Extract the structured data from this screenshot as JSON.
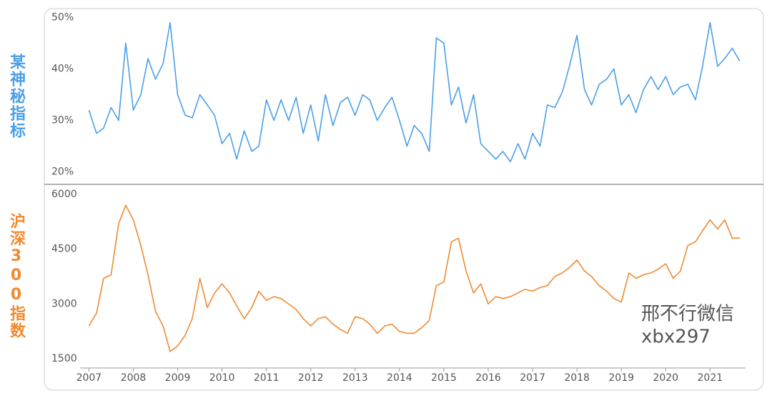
{
  "chart_data": [
    {
      "type": "line",
      "y_label": "某神秘指标",
      "color": "#4a9fe8",
      "x": [
        2007,
        2007.17,
        2007.33,
        2007.5,
        2007.67,
        2007.83,
        2008,
        2008.17,
        2008.33,
        2008.5,
        2008.67,
        2008.83,
        2009,
        2009.17,
        2009.33,
        2009.5,
        2009.67,
        2009.83,
        2010,
        2010.17,
        2010.33,
        2010.5,
        2010.67,
        2010.83,
        2011,
        2011.17,
        2011.33,
        2011.5,
        2011.67,
        2011.83,
        2012,
        2012.17,
        2012.33,
        2012.5,
        2012.67,
        2012.83,
        2013,
        2013.17,
        2013.33,
        2013.5,
        2013.67,
        2013.83,
        2014,
        2014.17,
        2014.33,
        2014.5,
        2014.67,
        2014.83,
        2015,
        2015.17,
        2015.33,
        2015.5,
        2015.67,
        2015.83,
        2016,
        2016.17,
        2016.33,
        2016.5,
        2016.67,
        2016.83,
        2017,
        2017.17,
        2017.33,
        2017.5,
        2017.67,
        2017.83,
        2018,
        2018.17,
        2018.33,
        2018.5,
        2018.67,
        2018.83,
        2019,
        2019.17,
        2019.33,
        2019.5,
        2019.67,
        2019.83,
        2020,
        2020.17,
        2020.33,
        2020.5,
        2020.67,
        2020.83,
        2021,
        2021.17,
        2021.33,
        2021.5,
        2021.67
      ],
      "values": [
        32,
        27.5,
        28.5,
        32.5,
        30,
        45,
        32,
        35,
        42,
        38,
        41,
        49,
        35,
        31,
        30.5,
        35,
        33,
        31,
        25.5,
        27.5,
        22.5,
        28,
        24,
        25,
        34,
        30,
        34,
        30,
        34.5,
        27.5,
        33,
        26,
        35,
        29,
        33.5,
        34.5,
        31,
        35,
        34,
        30,
        32.5,
        34.5,
        30,
        25,
        29,
        27.5,
        24,
        46,
        45,
        33,
        36.5,
        29.5,
        35,
        25.5,
        24,
        22.5,
        24,
        22,
        25.5,
        22.5,
        27.5,
        25,
        33,
        32.5,
        35.5,
        40.5,
        46.5,
        36,
        33,
        37,
        38,
        40,
        33,
        35,
        31.5,
        36,
        38.5,
        36,
        38.5,
        35,
        36.5,
        37,
        34,
        40.5,
        49,
        40.5,
        42,
        44,
        41.5
      ],
      "xlim": [
        2006.8,
        2021.8
      ],
      "ylim": [
        17.6,
        51.7
      ],
      "yticks": [
        {
          "value": 50,
          "label": "50%"
        },
        {
          "value": 40,
          "label": "40%"
        },
        {
          "value": 30,
          "label": "30%"
        },
        {
          "value": 20,
          "label": "20%"
        }
      ]
    },
    {
      "type": "line",
      "y_label": "沪深300指数",
      "color": "#f08a30",
      "x": [
        2007,
        2007.17,
        2007.33,
        2007.5,
        2007.67,
        2007.83,
        2008,
        2008.17,
        2008.33,
        2008.5,
        2008.67,
        2008.83,
        2009,
        2009.17,
        2009.33,
        2009.5,
        2009.67,
        2009.83,
        2010,
        2010.17,
        2010.33,
        2010.5,
        2010.67,
        2010.83,
        2011,
        2011.17,
        2011.33,
        2011.5,
        2011.67,
        2011.83,
        2012,
        2012.17,
        2012.33,
        2012.5,
        2012.67,
        2012.83,
        2013,
        2013.17,
        2013.33,
        2013.5,
        2013.67,
        2013.83,
        2014,
        2014.17,
        2014.33,
        2014.5,
        2014.67,
        2014.83,
        2015,
        2015.17,
        2015.33,
        2015.5,
        2015.67,
        2015.83,
        2016,
        2016.17,
        2016.33,
        2016.5,
        2016.67,
        2016.83,
        2017,
        2017.17,
        2017.33,
        2017.5,
        2017.67,
        2017.83,
        2018,
        2018.17,
        2018.33,
        2018.5,
        2018.67,
        2018.83,
        2019,
        2019.17,
        2019.33,
        2019.5,
        2019.67,
        2019.83,
        2020,
        2020.17,
        2020.33,
        2020.5,
        2020.67,
        2020.83,
        2021,
        2021.17,
        2021.33,
        2021.5,
        2021.67
      ],
      "values": [
        2400,
        2750,
        3700,
        3800,
        5200,
        5700,
        5300,
        4600,
        3800,
        2800,
        2400,
        1700,
        1850,
        2150,
        2600,
        3700,
        2900,
        3300,
        3550,
        3300,
        2950,
        2600,
        2900,
        3350,
        3100,
        3200,
        3150,
        3000,
        2850,
        2600,
        2400,
        2600,
        2650,
        2450,
        2300,
        2200,
        2650,
        2600,
        2450,
        2200,
        2400,
        2450,
        2250,
        2200,
        2200,
        2350,
        2550,
        3500,
        3600,
        4700,
        4800,
        3900,
        3300,
        3550,
        3000,
        3200,
        3150,
        3200,
        3300,
        3400,
        3350,
        3450,
        3500,
        3750,
        3850,
        4000,
        4200,
        3900,
        3750,
        3500,
        3350,
        3150,
        3050,
        3850,
        3700,
        3800,
        3850,
        3950,
        4100,
        3700,
        3900,
        4600,
        4700,
        5000,
        5300,
        5050,
        5300,
        4800,
        4800
      ],
      "xlim": [
        2006.8,
        2021.8
      ],
      "ylim": [
        1250,
        6270
      ],
      "yticks": [
        6000,
        4500,
        3000,
        1500
      ],
      "xticks": [
        2007,
        2008,
        2009,
        2010,
        2011,
        2012,
        2013,
        2014,
        2015,
        2016,
        2017,
        2018,
        2019,
        2020,
        2021
      ]
    }
  ],
  "watermark": [
    "邢不行微信",
    "xbx297"
  ]
}
